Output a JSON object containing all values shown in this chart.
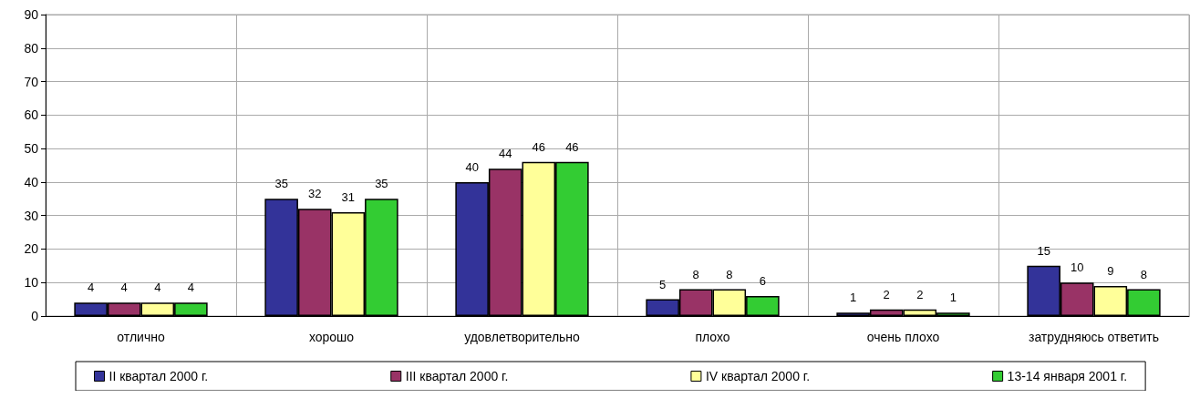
{
  "chart_data": {
    "type": "bar",
    "categories": [
      "отлично",
      "хорошо",
      "удовлетворительно",
      "плохо",
      "очень плохо",
      "затрудняюсь ответить"
    ],
    "series": [
      {
        "name": "II квартал 2000 г.",
        "color": "#333399",
        "values": [
          4,
          35,
          40,
          5,
          1,
          15
        ]
      },
      {
        "name": "III квартал 2000 г.",
        "color": "#993366",
        "values": [
          4,
          32,
          44,
          8,
          2,
          10
        ]
      },
      {
        "name": "IV квартал 2000 г.",
        "color": "#ffff99",
        "values": [
          4,
          31,
          46,
          8,
          2,
          9
        ]
      },
      {
        "name": "13-14 января 2001 г.",
        "color": "#33cc33",
        "values": [
          4,
          35,
          46,
          6,
          1,
          8
        ]
      }
    ],
    "ylim": [
      0,
      90
    ],
    "yticks": [
      0,
      10,
      20,
      30,
      40,
      50,
      60,
      70,
      80,
      90
    ],
    "grid": true,
    "legend": "bottom",
    "data_labels": true
  }
}
